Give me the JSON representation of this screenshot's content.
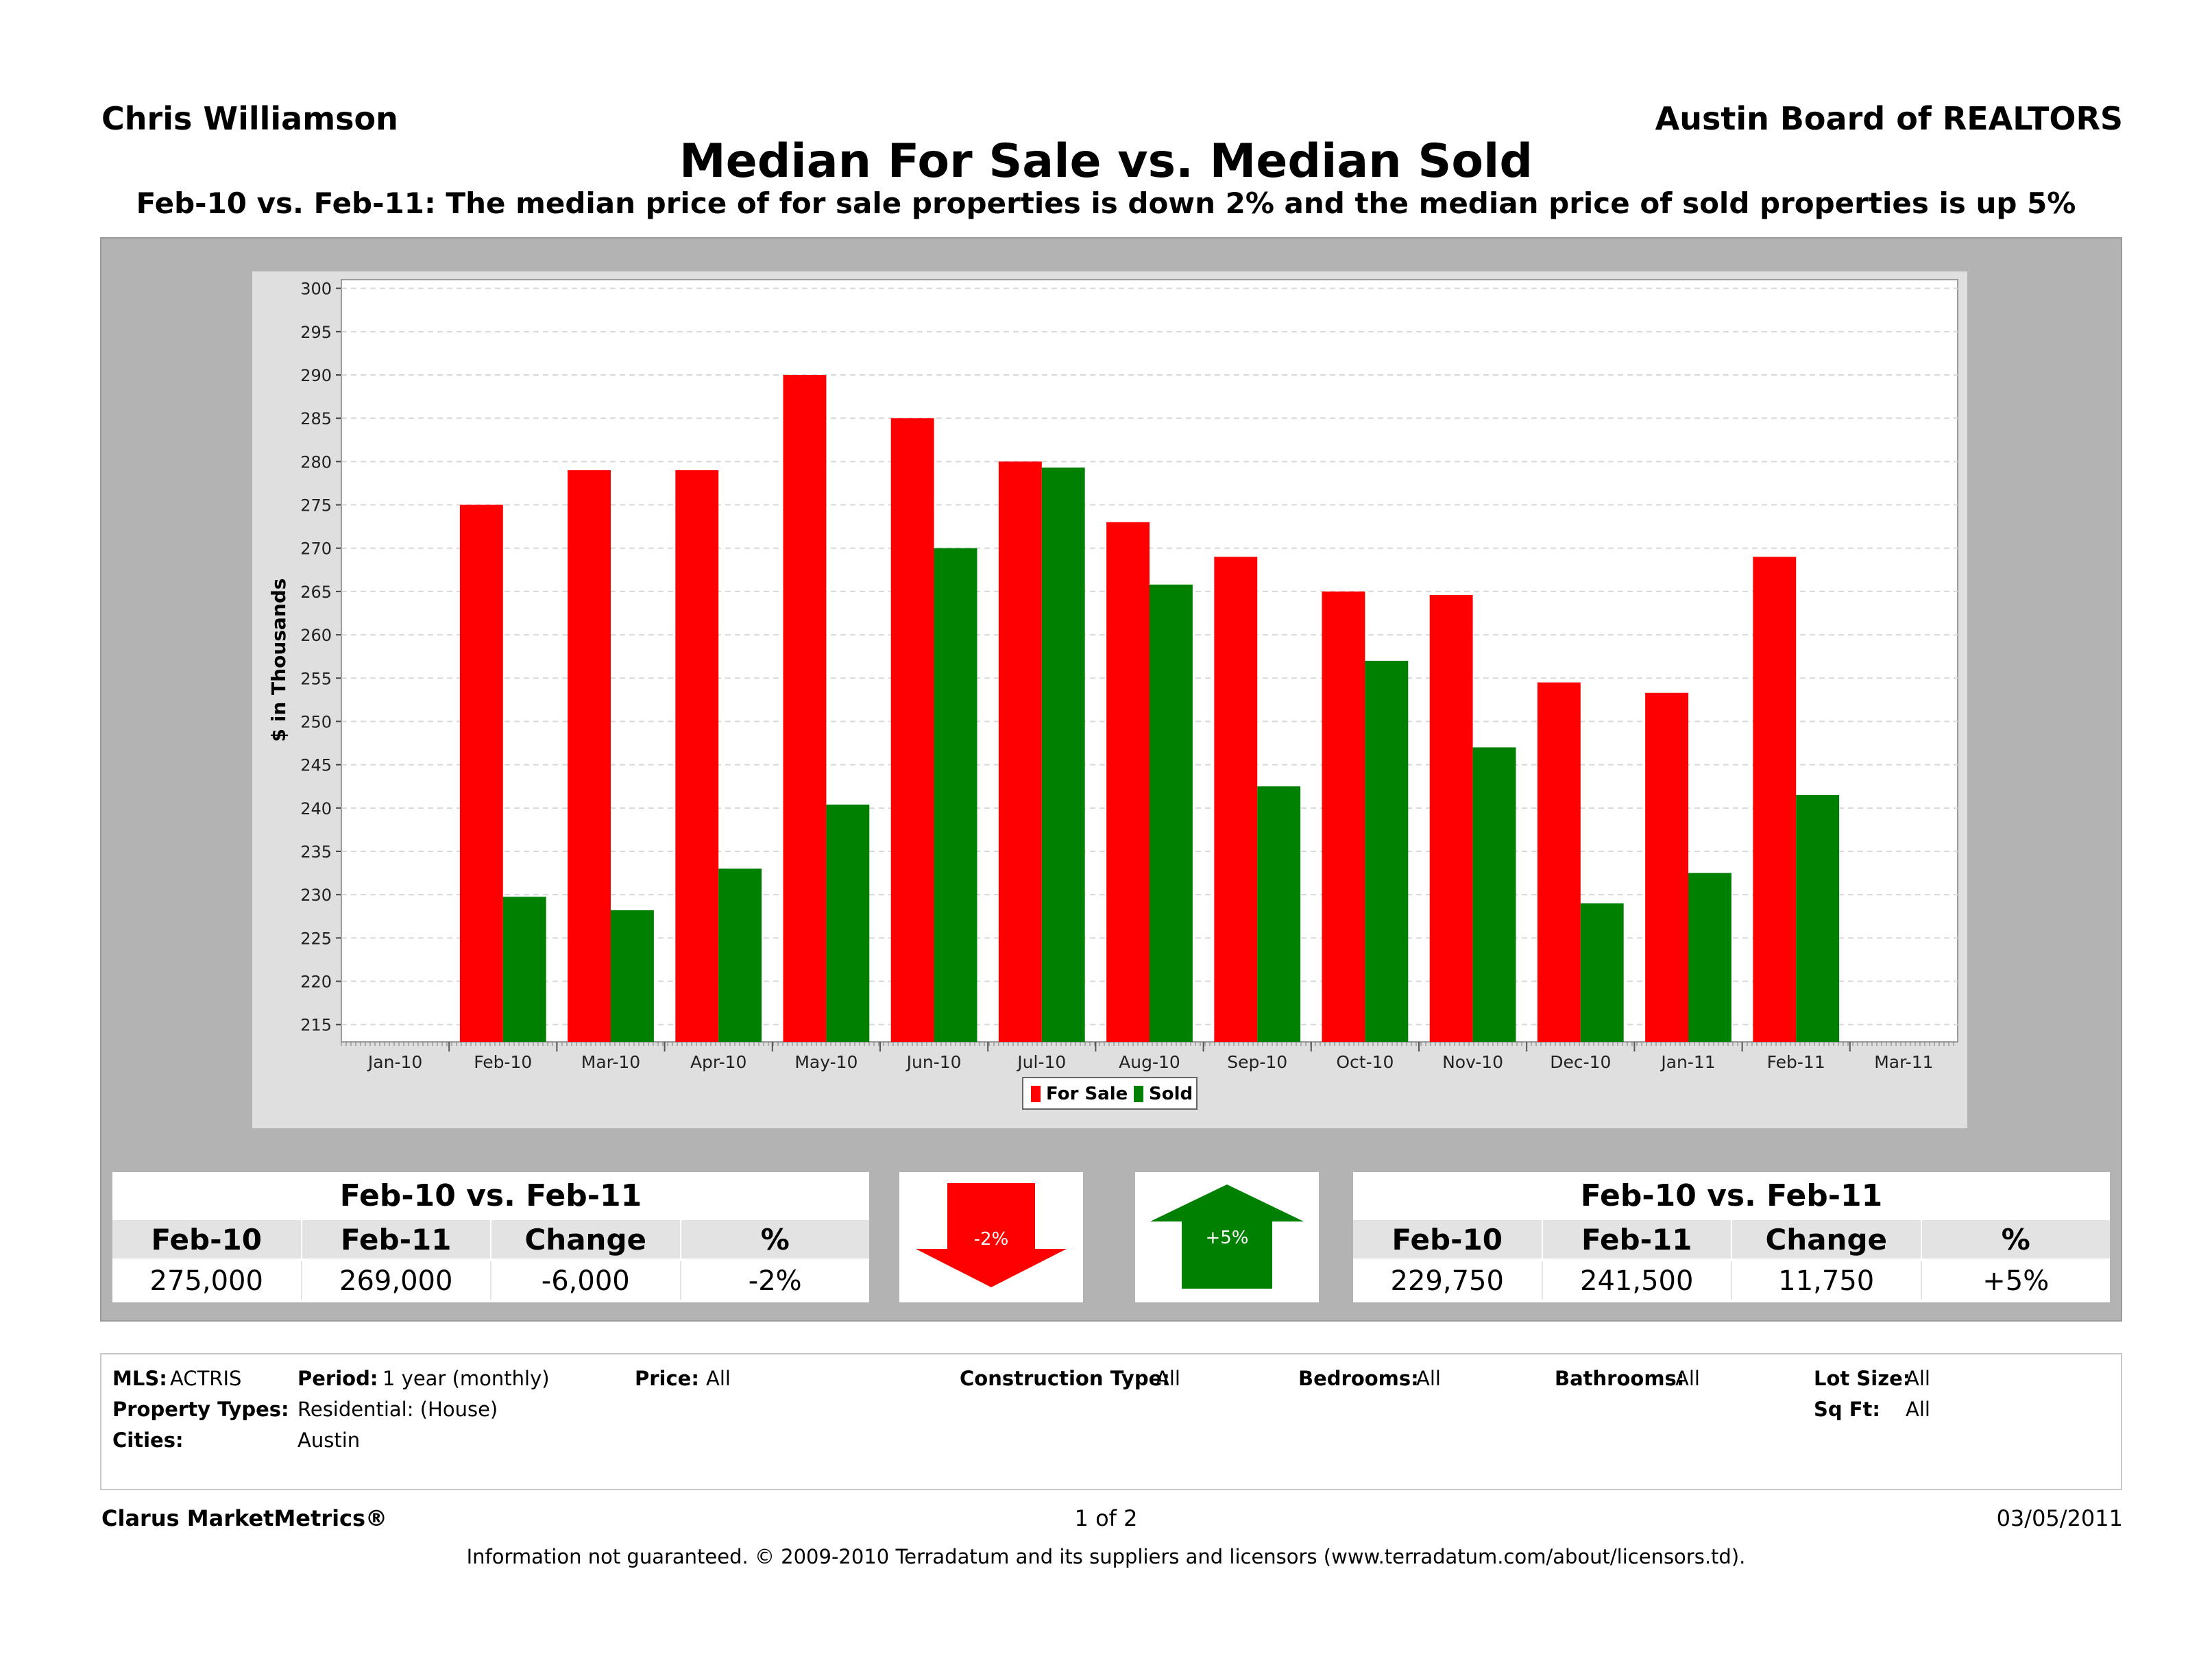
{
  "header": {
    "agent": "Chris Williamson",
    "board": "Austin Board of REALTORS",
    "title": "Median For Sale vs. Median Sold",
    "subtitle": "Feb-10 vs. Feb-11:  The median price of for sale properties is down 2% and the median price of sold properties is up 5%"
  },
  "chart_data": {
    "type": "bar",
    "title": "",
    "xlabel": "",
    "ylabel": "$ in Thousands",
    "ylim": [
      213,
      301
    ],
    "yticks": [
      215,
      220,
      225,
      230,
      235,
      240,
      245,
      250,
      255,
      260,
      265,
      270,
      275,
      280,
      285,
      290,
      295,
      300
    ],
    "grid": true,
    "legend_position": "bottom",
    "categories": [
      "Jan-10",
      "Feb-10",
      "Mar-10",
      "Apr-10",
      "May-10",
      "Jun-10",
      "Jul-10",
      "Aug-10",
      "Sep-10",
      "Oct-10",
      "Nov-10",
      "Dec-10",
      "Jan-11",
      "Feb-11",
      "Mar-11"
    ],
    "series": [
      {
        "name": "For Sale",
        "color": "#ff0000",
        "values": [
          null,
          275,
          279,
          279,
          290,
          285,
          280,
          273,
          269,
          265,
          264.6,
          254.5,
          253.3,
          269,
          null
        ]
      },
      {
        "name": "Sold",
        "color": "#008000",
        "values": [
          null,
          229.75,
          228.2,
          233,
          240.4,
          270,
          279.3,
          265.8,
          242.5,
          257,
          247,
          229,
          232.5,
          241.5,
          null
        ]
      }
    ]
  },
  "for_sale_stats": {
    "heading": "Feb-10 vs. Feb-11",
    "columns": [
      "Feb-10",
      "Feb-11",
      "Change",
      "%"
    ],
    "values": [
      "275,000",
      "269,000",
      "-6,000",
      "-2%"
    ]
  },
  "sold_stats": {
    "heading": "Feb-10 vs. Feb-11",
    "columns": [
      "Feb-10",
      "Feb-11",
      "Change",
      "%"
    ],
    "values": [
      "229,750",
      "241,500",
      "11,750",
      "+5%"
    ]
  },
  "arrows": {
    "down_label": "-2%",
    "up_label": "+5%",
    "down_color": "#ff0000",
    "up_color": "#008000"
  },
  "filters": {
    "mls_label": "MLS:",
    "mls_value": "ACTRIS",
    "period_label": "Period:",
    "period_value": "1 year (monthly)",
    "price_label": "Price:",
    "price_value": "All",
    "construction_label": "Construction Type:",
    "construction_value": "All",
    "bedrooms_label": "Bedrooms:",
    "bedrooms_value": "All",
    "bathrooms_label": "Bathrooms:",
    "bathrooms_value": "All",
    "lotsize_label": "Lot Size:",
    "lotsize_value": "All",
    "proptypes_label": "Property Types:",
    "proptypes_value": "Residential: (House)",
    "sqft_label": "Sq Ft:",
    "sqft_value": "All",
    "cities_label": "Cities:",
    "cities_value": "Austin"
  },
  "footer": {
    "brand": "Clarus MarketMetrics®",
    "page": "1 of 2",
    "date": "03/05/2011",
    "disclaimer": "Information not guaranteed.  © 2009-2010 Terradatum and its suppliers and licensors (www.terradatum.com/about/licensors.td)."
  }
}
